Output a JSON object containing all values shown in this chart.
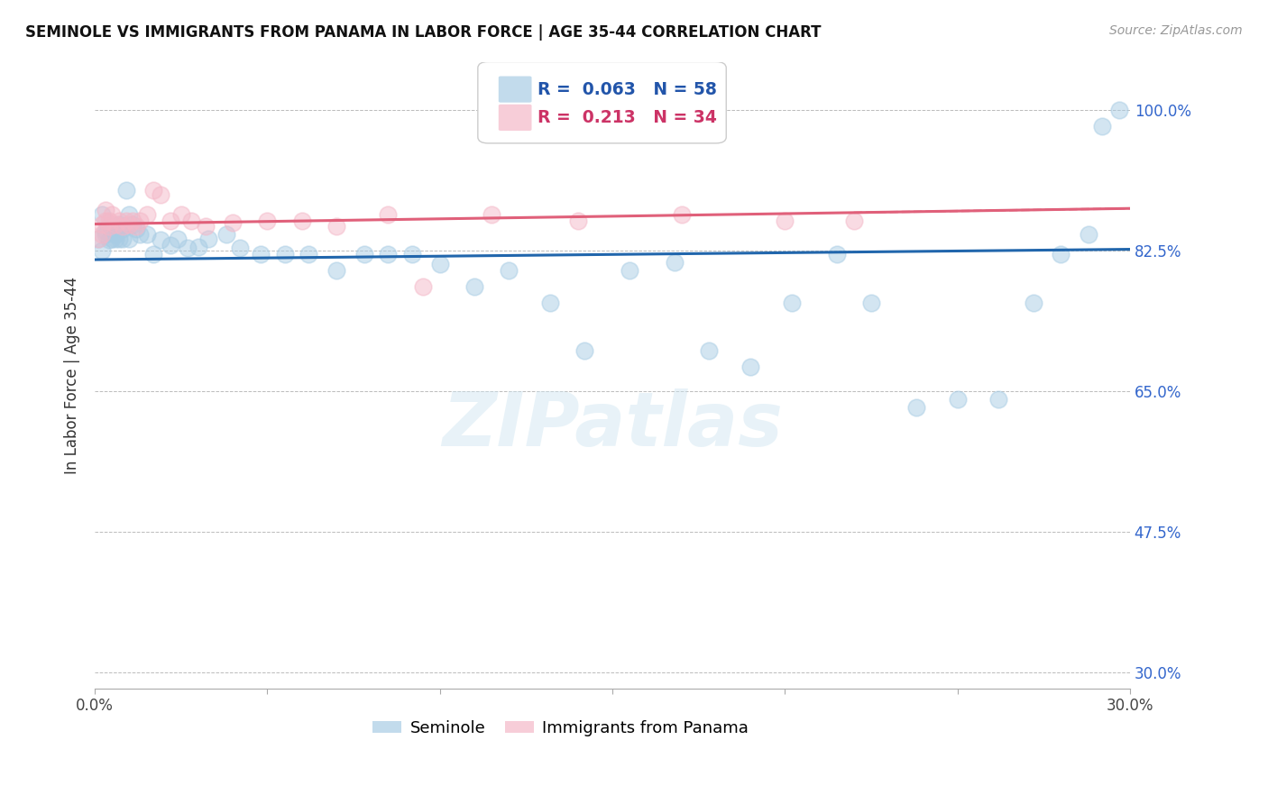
{
  "title": "SEMINOLE VS IMMIGRANTS FROM PANAMA IN LABOR FORCE | AGE 35-44 CORRELATION CHART",
  "source_text": "Source: ZipAtlas.com",
  "ylabel": "In Labor Force | Age 35-44",
  "xlim": [
    0.0,
    0.3
  ],
  "ylim": [
    0.28,
    1.06
  ],
  "xticks": [
    0.0,
    0.05,
    0.1,
    0.15,
    0.2,
    0.25,
    0.3
  ],
  "xticklabels": [
    "0.0%",
    "",
    "",
    "",
    "",
    "",
    "30.0%"
  ],
  "ytick_positions": [
    0.3,
    0.475,
    0.65,
    0.825,
    1.0
  ],
  "ytick_labels": [
    "30.0%",
    "47.5%",
    "65.0%",
    "82.5%",
    "100.0%"
  ],
  "blue_R": 0.063,
  "blue_N": 58,
  "pink_R": 0.213,
  "pink_N": 34,
  "blue_color": "#a8cce4",
  "pink_color": "#f4b8c8",
  "blue_line_color": "#2166ac",
  "pink_line_color": "#e0607a",
  "legend_label_blue": "Seminole",
  "legend_label_pink": "Immigrants from Panama",
  "blue_scatter_x": [
    0.001,
    0.002,
    0.002,
    0.003,
    0.003,
    0.004,
    0.004,
    0.005,
    0.005,
    0.006,
    0.006,
    0.007,
    0.007,
    0.008,
    0.008,
    0.009,
    0.01,
    0.01,
    0.011,
    0.012,
    0.013,
    0.015,
    0.017,
    0.019,
    0.022,
    0.024,
    0.027,
    0.03,
    0.033,
    0.038,
    0.042,
    0.048,
    0.055,
    0.062,
    0.07,
    0.078,
    0.085,
    0.092,
    0.1,
    0.11,
    0.12,
    0.132,
    0.142,
    0.155,
    0.168,
    0.178,
    0.19,
    0.202,
    0.215,
    0.225,
    0.238,
    0.25,
    0.262,
    0.272,
    0.28,
    0.288,
    0.292,
    0.297
  ],
  "blue_scatter_y": [
    0.84,
    0.825,
    0.87,
    0.845,
    0.85,
    0.838,
    0.855,
    0.84,
    0.85,
    0.84,
    0.845,
    0.858,
    0.84,
    0.852,
    0.84,
    0.9,
    0.87,
    0.84,
    0.858,
    0.852,
    0.845,
    0.845,
    0.82,
    0.838,
    0.832,
    0.84,
    0.828,
    0.83,
    0.84,
    0.845,
    0.828,
    0.82,
    0.82,
    0.82,
    0.8,
    0.82,
    0.82,
    0.82,
    0.808,
    0.78,
    0.8,
    0.76,
    0.7,
    0.8,
    0.81,
    0.7,
    0.68,
    0.76,
    0.82,
    0.76,
    0.63,
    0.64,
    0.64,
    0.76,
    0.82,
    0.845,
    0.98,
    1.0
  ],
  "pink_scatter_x": [
    0.001,
    0.002,
    0.002,
    0.003,
    0.003,
    0.004,
    0.004,
    0.005,
    0.006,
    0.007,
    0.008,
    0.009,
    0.01,
    0.011,
    0.012,
    0.013,
    0.015,
    0.017,
    0.019,
    0.022,
    0.025,
    0.028,
    0.032,
    0.04,
    0.05,
    0.06,
    0.07,
    0.085,
    0.095,
    0.115,
    0.14,
    0.17,
    0.2,
    0.22
  ],
  "pink_scatter_y": [
    0.84,
    0.845,
    0.858,
    0.862,
    0.875,
    0.855,
    0.862,
    0.87,
    0.858,
    0.862,
    0.855,
    0.862,
    0.858,
    0.862,
    0.855,
    0.862,
    0.87,
    0.9,
    0.895,
    0.862,
    0.87,
    0.862,
    0.855,
    0.86,
    0.862,
    0.862,
    0.855,
    0.87,
    0.78,
    0.87,
    0.862,
    0.87,
    0.862,
    0.862
  ],
  "watermark_text": "ZIPatlas",
  "background_color": "#ffffff",
  "grid_color": "#bbbbbb"
}
